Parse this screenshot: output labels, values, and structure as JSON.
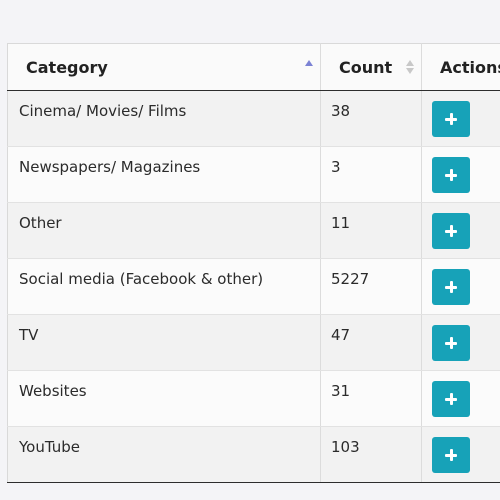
{
  "table": {
    "columns": {
      "category": "Category",
      "count": "Count",
      "actions": "Actions"
    },
    "sort": {
      "column": "Category",
      "direction": "ascending"
    },
    "rows": [
      {
        "category": "Cinema/ Movies/ Films",
        "count": "38"
      },
      {
        "category": "Newspapers/ Magazines",
        "count": "3"
      },
      {
        "category": "Other",
        "count": "11"
      },
      {
        "category": "Social media (Facebook & other)",
        "count": "5227"
      },
      {
        "category": "TV",
        "count": "47"
      },
      {
        "category": "Websites",
        "count": "31"
      },
      {
        "category": "YouTube",
        "count": "103"
      }
    ],
    "row_action_icon": "plus-icon"
  },
  "colors": {
    "action_button": "#17a2b8",
    "sort_active": "#7b82d4"
  }
}
